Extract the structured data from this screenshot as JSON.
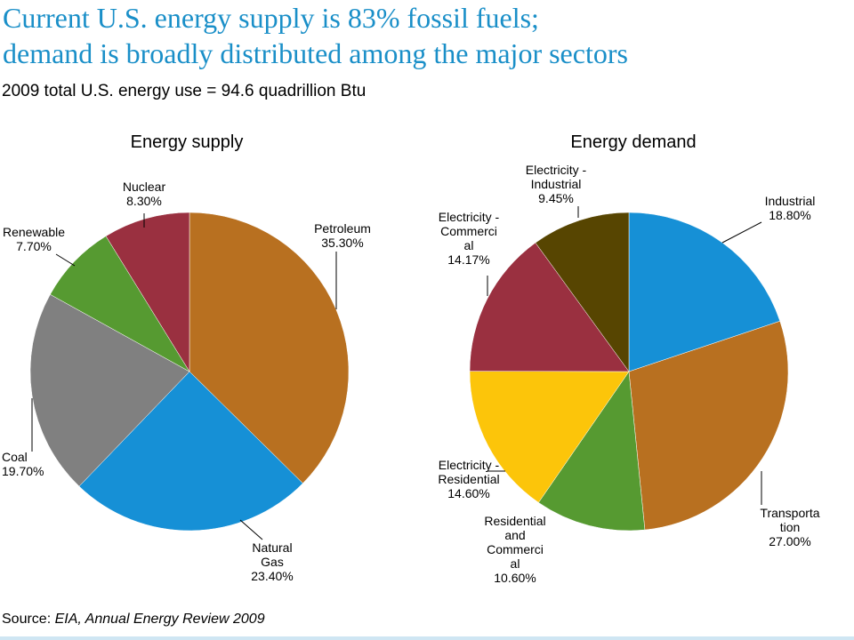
{
  "header": {
    "title_line1": "Current U.S. energy supply is 83% fossil fuels;",
    "title_line2": "demand is broadly distributed among the major sectors",
    "subtitle": "2009 total U.S. energy use = 94.6 quadrillion Btu"
  },
  "footer": {
    "source_prefix": "Source:  ",
    "source_text": "EIA, Annual Energy Review 2009"
  },
  "colors": {
    "title": "#1a8fc8",
    "rule": "#cfe6f3",
    "petroleum": "#b87020",
    "natural_gas": "#1690d6",
    "coal": "#808080",
    "renewable": "#569a31",
    "nuclear": "#9a3040",
    "industrial": "#1690d6",
    "transportation": "#b87020",
    "res_com": "#569a31",
    "elec_residential": "#fcc50a",
    "elec_commercial": "#9a3040",
    "elec_industrial": "#574501"
  },
  "chart_data": [
    {
      "type": "pie",
      "title": "Energy supply",
      "slices": [
        {
          "label": [
            "Petroleum",
            "35.30%"
          ],
          "value": 35.3,
          "color": "#b87020"
        },
        {
          "label": [
            "Natural",
            "Gas",
            "23.40%"
          ],
          "value": 23.4,
          "color": "#1690d6"
        },
        {
          "label": [
            "Coal",
            "19.70%"
          ],
          "value": 19.7,
          "color": "#808080"
        },
        {
          "label": [
            "Renewable",
            "7.70%"
          ],
          "value": 7.7,
          "color": "#569a31"
        },
        {
          "label": [
            "Nuclear",
            "8.30%"
          ],
          "value": 8.3,
          "color": "#9a3040"
        }
      ]
    },
    {
      "type": "pie",
      "title": "Energy demand",
      "slices": [
        {
          "label": [
            "Industrial",
            "18.80%"
          ],
          "value": 18.8,
          "color": "#1690d6"
        },
        {
          "label": [
            "Transporta",
            "tion",
            "27.00%"
          ],
          "value": 27.0,
          "color": "#b87020"
        },
        {
          "label": [
            "Residential",
            "and",
            "Commerci",
            "al",
            "10.60%"
          ],
          "value": 10.6,
          "color": "#569a31"
        },
        {
          "label": [
            "Electricity -",
            "Residential",
            "14.60%"
          ],
          "value": 14.6,
          "color": "#fcc50a"
        },
        {
          "label": [
            "Electricity -",
            "Commerci",
            "al",
            "14.17%"
          ],
          "value": 14.17,
          "color": "#9a3040"
        },
        {
          "label": [
            "Electricity -",
            "Industrial",
            "9.45%"
          ],
          "value": 9.45,
          "color": "#574501"
        }
      ]
    }
  ]
}
